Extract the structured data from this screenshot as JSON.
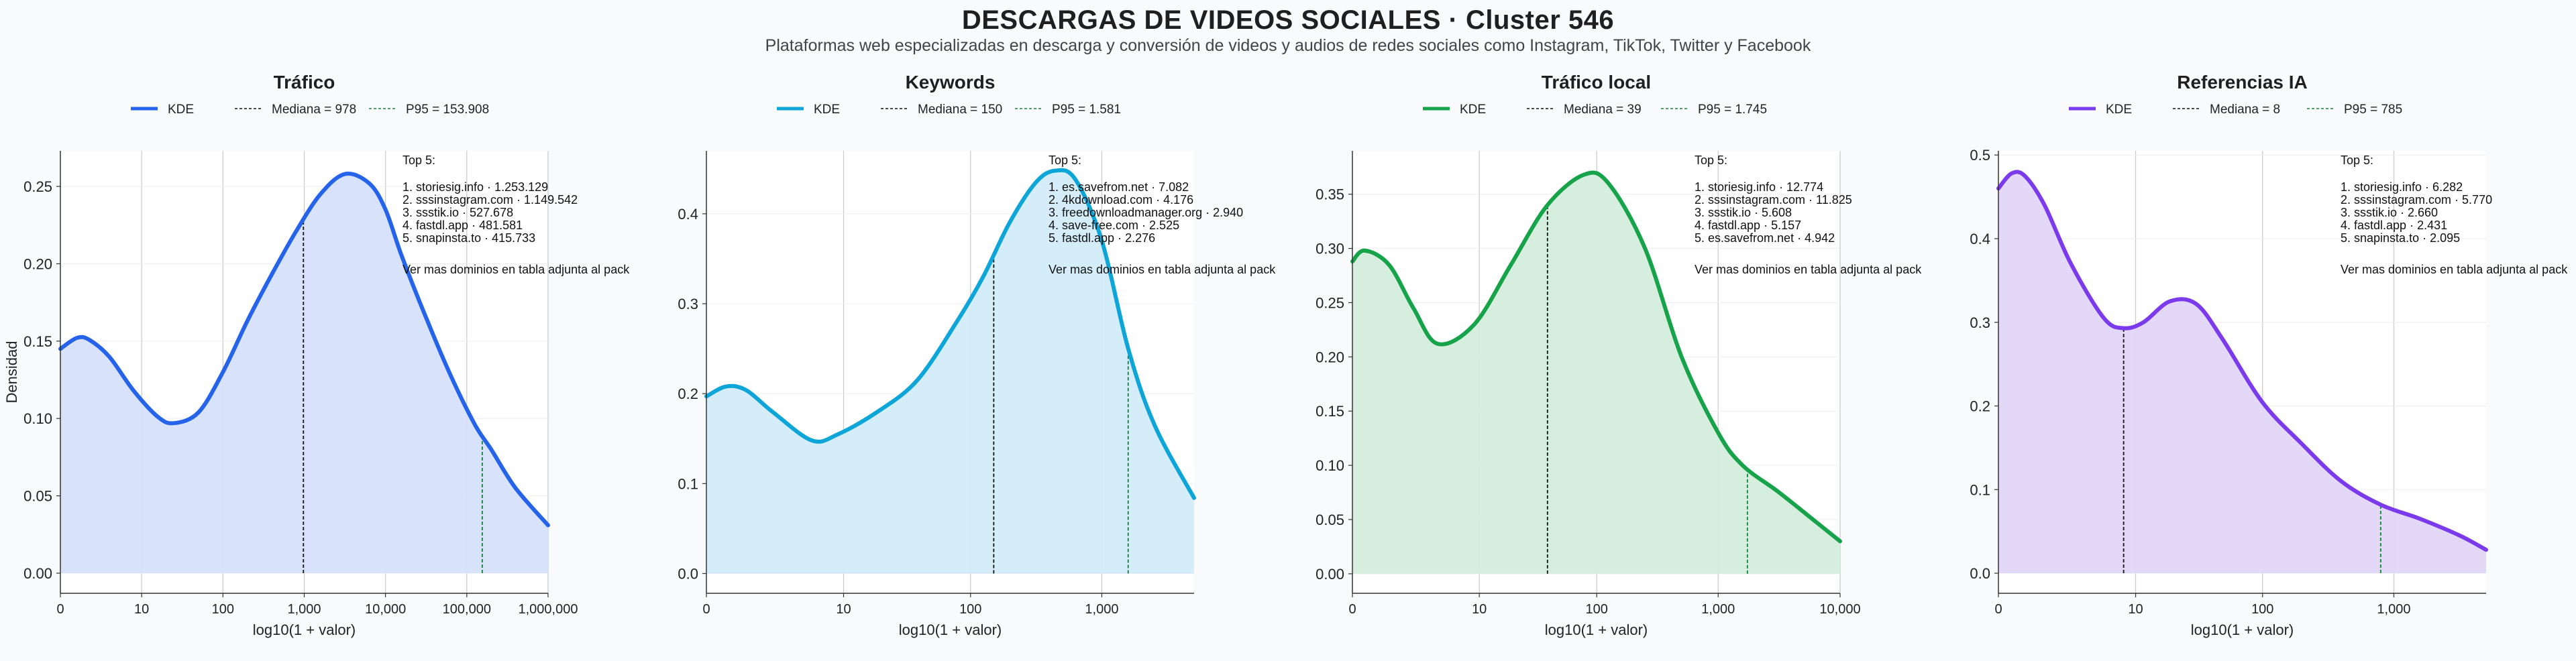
{
  "page": {
    "title": "DESCARGAS DE VIDEOS SOCIALES · Cluster 546",
    "subtitle": "Plataformas web especializadas en descarga y conversión de videos y audios de redes sociales como Instagram, TikTok, Twitter y Facebook"
  },
  "chart_data": [
    {
      "type": "area",
      "title": "Tráfico",
      "color": "#2563eb",
      "fill": "#d6e2fb",
      "xlabel": "log10(1 + valor)",
      "ylabel": "Densidad",
      "xlim": [
        0,
        6
      ],
      "ylim": [
        -0.013,
        0.273
      ],
      "x_ticks": [
        0,
        1,
        2,
        3,
        4,
        5,
        6
      ],
      "x_tick_labels": [
        "0",
        "10",
        "100",
        "1,000",
        "10,000",
        "100,000",
        "1,000,000"
      ],
      "y_ticks": [
        0,
        0.05,
        0.1,
        0.15,
        0.2,
        0.25
      ],
      "y_tick_labels": [
        "0.00",
        "0.05",
        "0.10",
        "0.15",
        "0.20",
        "0.25"
      ],
      "legend": [
        "KDE",
        "Mediana = 978",
        "P95 = 153.908"
      ],
      "median_x": 2.99,
      "p95_x": 5.19,
      "kde": {
        "x": [
          0,
          0.2,
          0.35,
          0.6,
          0.9,
          1.2,
          1.4,
          1.7,
          2.0,
          2.3,
          2.6,
          2.9,
          3.2,
          3.5,
          3.8,
          4.0,
          4.2,
          4.5,
          4.8,
          5.1,
          5.3,
          5.6,
          6.0
        ],
        "y": [
          0.145,
          0.152,
          0.151,
          0.14,
          0.118,
          0.101,
          0.097,
          0.104,
          0.13,
          0.163,
          0.193,
          0.221,
          0.245,
          0.258,
          0.252,
          0.235,
          0.205,
          0.165,
          0.128,
          0.096,
          0.08,
          0.055,
          0.031
        ]
      },
      "annotation": {
        "heading": "Top 5:",
        "items": [
          "1. storiesig.info · 1.253.129",
          "2. sssinstagram.com · 1.149.542",
          "3. ssstik.io · 527.678",
          "4. fastdl.app · 481.581",
          "5. snapinsta.to · 415.733"
        ],
        "footer": "Ver mas dominios en tabla adjunta al pack"
      }
    },
    {
      "type": "area",
      "title": "Keywords",
      "color": "#0ea5d9",
      "fill": "#d2ecf9",
      "xlabel": "log10(1 + valor)",
      "ylabel": "",
      "xlim": [
        0,
        3.7
      ],
      "ylim": [
        -0.022,
        0.47
      ],
      "x_ticks": [
        0,
        1.041,
        2.004,
        3.0
      ],
      "x_tick_labels": [
        "0",
        "10",
        "100",
        "1,000"
      ],
      "y_ticks": [
        0,
        0.1,
        0.2,
        0.3,
        0.4
      ],
      "y_tick_labels": [
        "0.0",
        "0.1",
        "0.2",
        "0.3",
        "0.4"
      ],
      "legend": [
        "KDE",
        "Mediana = 150",
        "P95 = 1.581"
      ],
      "median_x": 2.18,
      "p95_x": 3.2,
      "kde": {
        "x": [
          0,
          0.15,
          0.3,
          0.5,
          0.8,
          1.0,
          1.3,
          1.6,
          1.9,
          2.1,
          2.3,
          2.5,
          2.65,
          2.8,
          3.0,
          3.2,
          3.4,
          3.7
        ],
        "y": [
          0.197,
          0.208,
          0.204,
          0.18,
          0.148,
          0.155,
          0.18,
          0.215,
          0.28,
          0.33,
          0.39,
          0.435,
          0.448,
          0.438,
          0.37,
          0.25,
          0.165,
          0.084
        ]
      },
      "annotation": {
        "heading": "Top 5:",
        "items": [
          "1. es.savefrom.net · 7.082",
          "2. 4kdownload.com · 4.176",
          "3. freedownloadmanager.org · 2.940",
          "4. save-free.com · 2.525",
          "5. fastdl.app · 2.276"
        ],
        "footer": "Ver mas dominios en tabla adjunta al pack"
      }
    },
    {
      "type": "area",
      "title": "Tráfico local",
      "color": "#16a34a",
      "fill": "#d3eddb",
      "xlabel": "log10(1 + valor)",
      "ylabel": "",
      "xlim": [
        0,
        4.0
      ],
      "ylim": [
        -0.018,
        0.39
      ],
      "x_ticks": [
        0,
        1.041,
        2.004,
        3.0,
        4.0
      ],
      "x_tick_labels": [
        "0",
        "10",
        "100",
        "1,000",
        "10,000"
      ],
      "y_ticks": [
        0,
        0.05,
        0.1,
        0.15,
        0.2,
        0.25,
        0.3,
        0.35
      ],
      "y_tick_labels": [
        "0.00",
        "0.05",
        "0.10",
        "0.15",
        "0.20",
        "0.25",
        "0.30",
        "0.35"
      ],
      "legend": [
        "KDE",
        "Mediana = 39",
        "P95 = 1.745"
      ],
      "median_x": 1.6,
      "p95_x": 3.24,
      "kde": {
        "x": [
          0,
          0.1,
          0.3,
          0.5,
          0.7,
          1.0,
          1.3,
          1.6,
          1.9,
          2.1,
          2.4,
          2.7,
          3.0,
          3.2,
          3.5,
          3.8,
          4.0
        ],
        "y": [
          0.288,
          0.298,
          0.285,
          0.245,
          0.212,
          0.23,
          0.285,
          0.34,
          0.368,
          0.36,
          0.3,
          0.2,
          0.13,
          0.1,
          0.075,
          0.048,
          0.03
        ]
      },
      "annotation": {
        "heading": "Top 5:",
        "items": [
          "1. storiesig.info · 12.774",
          "2. sssinstagram.com · 11.825",
          "3. ssstik.io · 5.608",
          "4. fastdl.app · 5.157",
          "5. es.savefrom.net · 4.942"
        ],
        "footer": "Ver mas dominios en tabla adjunta al pack"
      }
    },
    {
      "type": "area",
      "title": "Referencias IA",
      "color": "#7c3aed",
      "fill": "#e3d6f8",
      "xlabel": "log10(1 + valor)",
      "ylabel": "",
      "xlim": [
        0,
        3.7
      ],
      "ylim": [
        -0.024,
        0.505
      ],
      "x_ticks": [
        0,
        1.041,
        2.004,
        3.0
      ],
      "x_tick_labels": [
        "0",
        "10",
        "100",
        "1,000"
      ],
      "y_ticks": [
        0,
        0.1,
        0.2,
        0.3,
        0.4,
        0.5
      ],
      "y_tick_labels": [
        "0.0",
        "0.1",
        "0.2",
        "0.3",
        "0.4",
        "0.5"
      ],
      "legend": [
        "KDE",
        "Mediana = 8",
        "P95 = 785"
      ],
      "median_x": 0.95,
      "p95_x": 2.9,
      "kde": {
        "x": [
          0,
          0.1,
          0.2,
          0.35,
          0.55,
          0.8,
          0.95,
          1.1,
          1.3,
          1.5,
          1.7,
          2.0,
          2.3,
          2.6,
          2.9,
          3.2,
          3.5,
          3.7
        ],
        "y": [
          0.46,
          0.478,
          0.475,
          0.44,
          0.37,
          0.305,
          0.293,
          0.3,
          0.325,
          0.322,
          0.28,
          0.205,
          0.155,
          0.11,
          0.082,
          0.065,
          0.045,
          0.028
        ]
      },
      "annotation": {
        "heading": "Top 5:",
        "items": [
          "1. storiesig.info · 6.282",
          "2. sssinstagram.com · 5.770",
          "3. ssstik.io · 2.660",
          "4. fastdl.app · 2.431",
          "5. snapinsta.to · 2.095"
        ],
        "footer": "Ver mas dominios en tabla adjunta al pack"
      }
    }
  ]
}
